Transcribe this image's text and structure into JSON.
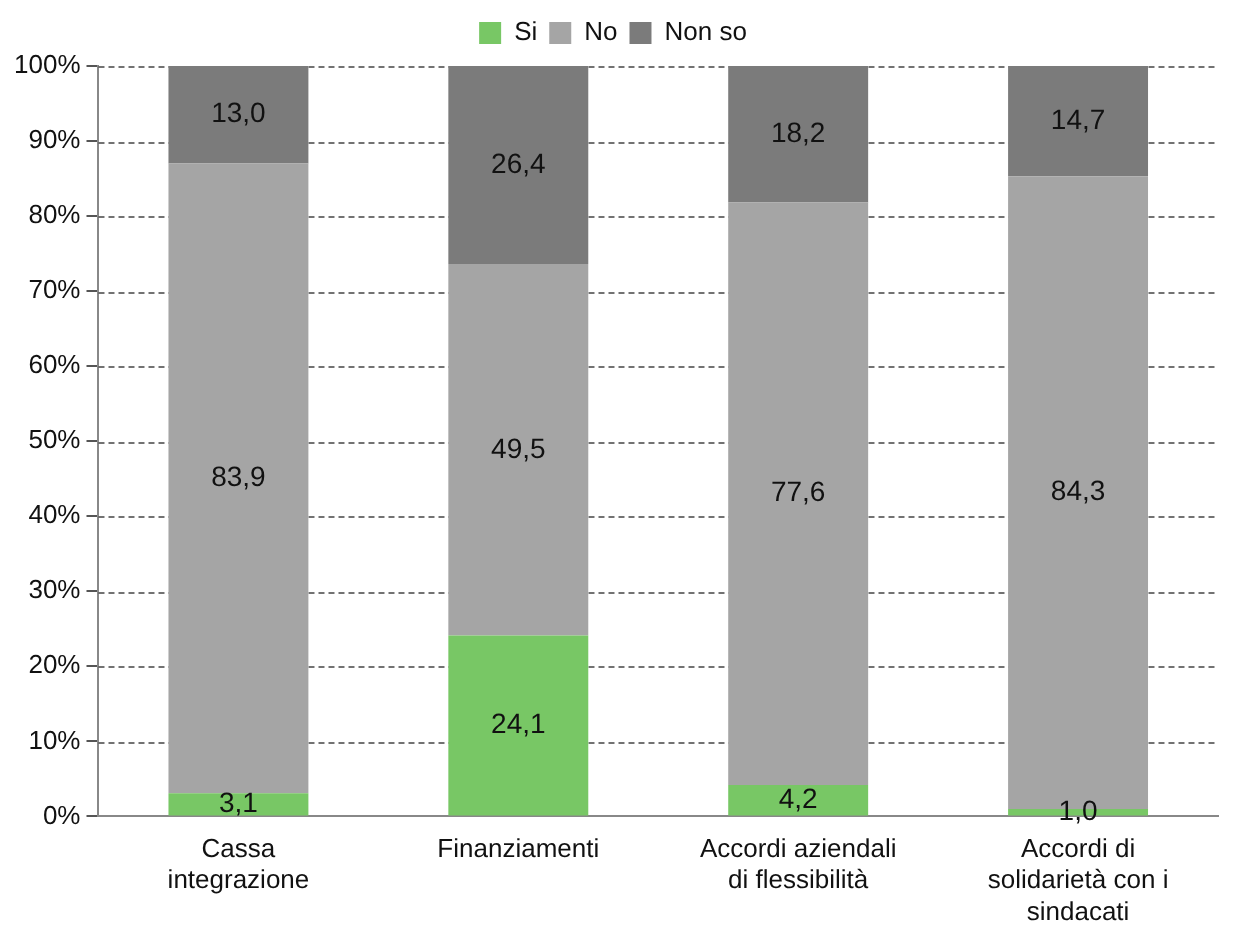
{
  "chart_data": {
    "type": "bar",
    "stacked": true,
    "categories": [
      "Cassa integrazione",
      "Finanziamenti",
      "Accordi aziendali di flessibilità",
      "Accordi di solidarietà con i sindacati"
    ],
    "series": [
      {
        "name": "Si",
        "color": "#78c765",
        "values": [
          3.1,
          24.1,
          4.2,
          1.0
        ],
        "value_labels": [
          "3,1",
          "24,1",
          "4,2",
          "1,0"
        ]
      },
      {
        "name": "No",
        "color": "#a5a5a5",
        "values": [
          83.9,
          49.5,
          77.6,
          84.3
        ],
        "value_labels": [
          "83,9",
          "49,5",
          "77,6",
          "84,3"
        ]
      },
      {
        "name": "Non so",
        "color": "#7b7b7b",
        "values": [
          13.0,
          26.4,
          18.2,
          14.7
        ],
        "value_labels": [
          "13,0",
          "26,4",
          "18,2",
          "14,7"
        ]
      }
    ],
    "ylim": [
      0,
      100
    ],
    "yticks": [
      {
        "value": 0,
        "label": "0%"
      },
      {
        "value": 10,
        "label": "10%"
      },
      {
        "value": 20,
        "label": "20%"
      },
      {
        "value": 30,
        "label": "30%"
      },
      {
        "value": 40,
        "label": "40%"
      },
      {
        "value": 50,
        "label": "50%"
      },
      {
        "value": 60,
        "label": "60%"
      },
      {
        "value": 70,
        "label": "70%"
      },
      {
        "value": 80,
        "label": "80%"
      },
      {
        "value": 90,
        "label": "90%"
      },
      {
        "value": 100,
        "label": "100%"
      }
    ],
    "grid": "y",
    "legend": "top"
  }
}
